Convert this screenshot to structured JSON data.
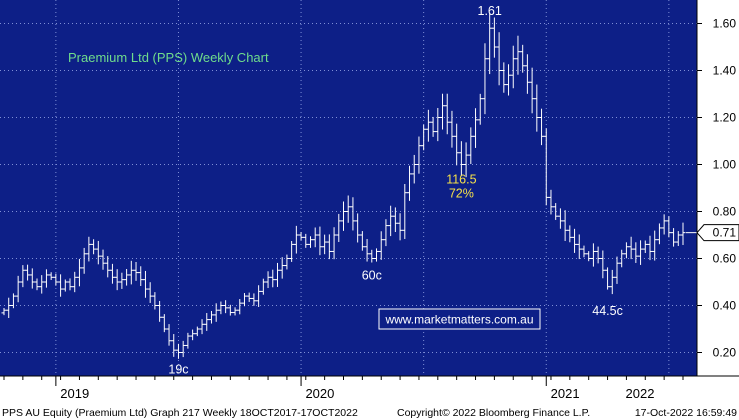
{
  "chart_data": {
    "type": "ohlc",
    "title": "Praemium Ltd (PPS) Weekly Chart",
    "ylim": [
      0.1,
      1.7
    ],
    "yticks": [
      0.2,
      0.4,
      0.6,
      0.8,
      1.0,
      1.2,
      1.4,
      1.6
    ],
    "ytick_labels": [
      "0.20",
      "0.40",
      "0.60",
      "0.80",
      "1.00",
      "1.20",
      "1.40",
      "1.60"
    ],
    "x_year_labels": [
      "2019",
      "2020",
      "2021",
      "2022"
    ],
    "grid": true,
    "last_price": 0.71,
    "last_price_label": "0.71",
    "bar_color": "#ffffff",
    "annotation_color": "#ffffff",
    "title_color": "#6fdc8c",
    "peak_note_color": "#f5e04a",
    "series": [
      {
        "weekly_close": [
          0.38,
          0.4,
          0.44,
          0.5,
          0.55,
          0.53,
          0.5,
          0.48,
          0.5,
          0.53,
          0.52,
          0.5,
          0.47,
          0.5,
          0.48,
          0.52,
          0.56,
          0.62,
          0.66,
          0.64,
          0.61,
          0.58,
          0.55,
          0.52,
          0.5,
          0.51,
          0.53,
          0.55,
          0.54,
          0.51,
          0.47,
          0.44,
          0.4,
          0.35,
          0.3,
          0.25,
          0.21,
          0.2,
          0.23,
          0.27,
          0.28,
          0.3,
          0.32,
          0.34,
          0.36,
          0.38,
          0.4,
          0.39,
          0.37,
          0.38,
          0.41,
          0.44,
          0.43,
          0.42,
          0.46,
          0.5,
          0.52,
          0.51,
          0.55,
          0.57,
          0.6,
          0.66,
          0.7,
          0.69,
          0.66,
          0.68,
          0.7,
          0.65,
          0.67,
          0.63,
          0.7,
          0.76,
          0.8,
          0.82,
          0.76,
          0.7,
          0.65,
          0.62,
          0.6,
          0.63,
          0.68,
          0.74,
          0.78,
          0.75,
          0.72,
          0.88,
          0.96,
          1.0,
          1.08,
          1.15,
          1.18,
          1.14,
          1.2,
          1.25,
          1.18,
          1.12,
          1.05,
          1.0,
          1.04,
          1.12,
          1.19,
          1.28,
          1.45,
          1.58,
          1.5,
          1.4,
          1.34,
          1.38,
          1.45,
          1.48,
          1.42,
          1.35,
          1.28,
          1.2,
          1.12,
          0.86,
          0.82,
          0.78,
          0.76,
          0.72,
          0.69,
          0.66,
          0.64,
          0.62,
          0.6,
          0.63,
          0.6,
          0.55,
          0.48,
          0.52,
          0.58,
          0.62,
          0.65,
          0.64,
          0.61,
          0.64,
          0.66,
          0.63,
          0.68,
          0.73,
          0.76,
          0.71,
          0.67,
          0.7,
          0.71
        ]
      }
    ],
    "annotations": [
      {
        "text": "1.61",
        "x_week": 103,
        "y": 1.61,
        "kind": "above"
      },
      {
        "text": "116.5",
        "x_week": 97,
        "y": 0.92,
        "kind": "note"
      },
      {
        "text": "72%",
        "x_week": 97,
        "y": 0.86,
        "kind": "note"
      },
      {
        "text": "60c",
        "x_week": 78,
        "y": 0.57,
        "kind": "below"
      },
      {
        "text": "19c",
        "x_week": 37,
        "y": 0.17,
        "kind": "below"
      },
      {
        "text": "44.5c",
        "x_week": 128,
        "y": 0.42,
        "kind": "below"
      }
    ]
  },
  "watermark": "www.marketmatters.com.au",
  "footer": {
    "left": "PPS AU Equity (Praemium Ltd) Graph 217  Weekly 18OCT2017-17OCT2022",
    "center": "Copyright© 2022 Bloomberg Finance L.P.",
    "right": "17-Oct-2022 16:59:49"
  },
  "colors": {
    "background": "#0d1f87",
    "grid": "#7f8fd6",
    "axis_panel": "#ffffff",
    "axis_text": "#000000",
    "footer_text": "#000000"
  }
}
